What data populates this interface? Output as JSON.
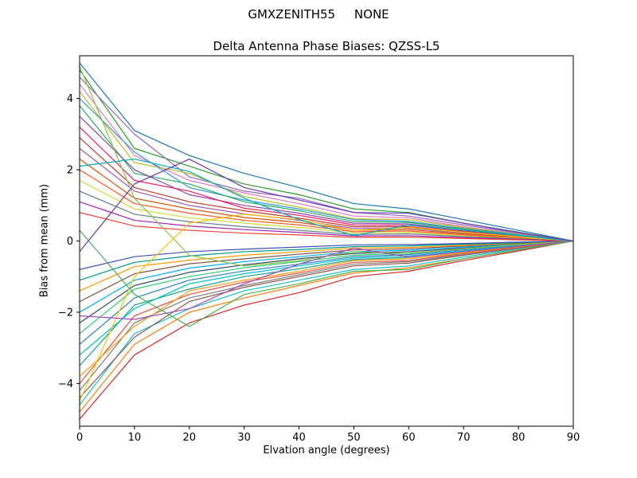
{
  "figure": {
    "suptitle": "GMXZENITH55     NONE",
    "background": "#ffffff",
    "frame_color": "#000000"
  },
  "chart_data": {
    "type": "line",
    "title": "Delta Antenna Phase Biases: QZSS-L5",
    "xlabel": "Elvation angle (degrees)",
    "ylabel": "Bias from mean (mm)",
    "xlim": [
      0,
      90
    ],
    "ylim": [
      -5.2,
      5.2
    ],
    "xticks": [
      0,
      10,
      20,
      30,
      40,
      50,
      60,
      70,
      80,
      90
    ],
    "yticks": [
      -4,
      -2,
      0,
      2,
      4
    ],
    "grid": false,
    "legend_position": "none",
    "x": [
      0,
      10,
      20,
      30,
      40,
      50,
      60,
      70,
      80,
      90
    ],
    "series": [
      {
        "color": "#1f77b4",
        "values": [
          5.0,
          3.1,
          2.4,
          1.9,
          1.5,
          1.05,
          0.9,
          0.6,
          0.3,
          0
        ]
      },
      {
        "color": "#d62728",
        "values": [
          -5.0,
          -3.2,
          -2.3,
          -1.8,
          -1.45,
          -1.0,
          -0.85,
          -0.55,
          -0.28,
          0
        ]
      },
      {
        "color": "#2ca02c",
        "values": [
          4.8,
          2.6,
          2.1,
          1.6,
          1.3,
          0.9,
          0.8,
          0.5,
          0.25,
          0
        ]
      },
      {
        "color": "#ff7f0e",
        "values": [
          -4.8,
          -2.9,
          -2.0,
          -1.6,
          -1.25,
          -0.9,
          -0.75,
          -0.5,
          -0.25,
          0
        ]
      },
      {
        "color": "#9467bd",
        "values": [
          4.6,
          3.0,
          1.8,
          1.4,
          1.2,
          0.8,
          0.7,
          0.45,
          0.22,
          0
        ]
      },
      {
        "color": "#17becf",
        "values": [
          -4.6,
          -2.6,
          -1.9,
          -1.4,
          -1.1,
          -0.8,
          -0.7,
          -0.45,
          -0.22,
          0
        ]
      },
      {
        "color": "#e377c2",
        "values": [
          4.4,
          2.4,
          1.7,
          1.35,
          1.05,
          0.7,
          0.65,
          0.4,
          0.2,
          0
        ]
      },
      {
        "color": "#8c564b",
        "values": [
          -4.4,
          -2.7,
          -1.7,
          -1.3,
          -1.0,
          -0.7,
          -0.62,
          -0.4,
          -0.2,
          0
        ]
      },
      {
        "color": "#bcbd22",
        "values": [
          4.2,
          2.2,
          1.9,
          1.25,
          0.95,
          0.62,
          0.6,
          0.38,
          0.19,
          0
        ]
      },
      {
        "color": "#7f7f7f",
        "values": [
          -4.2,
          -2.3,
          -1.6,
          -1.25,
          -0.95,
          -0.65,
          -0.58,
          -0.38,
          -0.19,
          0
        ]
      },
      {
        "color": "#3498db",
        "values": [
          4.0,
          2.5,
          1.5,
          1.15,
          0.9,
          0.6,
          0.55,
          0.35,
          0.18,
          0
        ]
      },
      {
        "color": "#e74c3c",
        "values": [
          -4.0,
          -2.1,
          -1.5,
          -1.15,
          -0.9,
          -0.6,
          -0.55,
          -0.35,
          -0.18,
          0
        ]
      },
      {
        "color": "#27ae60",
        "values": [
          3.8,
          1.9,
          1.6,
          1.1,
          0.85,
          0.55,
          0.52,
          0.33,
          0.16,
          0
        ]
      },
      {
        "color": "#f39c12",
        "values": [
          -3.8,
          -2.4,
          -1.4,
          -1.1,
          -0.85,
          -0.55,
          -0.5,
          -0.33,
          -0.16,
          0
        ]
      },
      {
        "color": "#8e44ad",
        "values": [
          3.5,
          2.0,
          1.3,
          1.0,
          0.78,
          0.5,
          0.48,
          0.3,
          0.15,
          0
        ]
      },
      {
        "color": "#16a085",
        "values": [
          -3.5,
          -1.8,
          -1.35,
          -1.0,
          -0.78,
          -0.52,
          -0.46,
          -0.3,
          -0.15,
          0
        ]
      },
      {
        "color": "#e91e63",
        "values": [
          3.2,
          1.7,
          1.4,
          0.92,
          0.72,
          0.45,
          0.44,
          0.28,
          0.14,
          0
        ]
      },
      {
        "color": "#00bcd4",
        "values": [
          -3.2,
          -1.9,
          -1.2,
          -0.92,
          -0.7,
          -0.48,
          -0.42,
          -0.28,
          -0.14,
          0
        ]
      },
      {
        "color": "#c0392b",
        "values": [
          2.9,
          1.5,
          1.1,
          0.85,
          0.64,
          0.4,
          0.4,
          0.25,
          0.12,
          0
        ]
      },
      {
        "color": "#2980b9",
        "values": [
          -2.9,
          -1.6,
          -1.1,
          -0.84,
          -0.65,
          -0.44,
          -0.38,
          -0.25,
          -0.12,
          0
        ]
      },
      {
        "color": "#9b59b6",
        "values": [
          2.6,
          1.4,
          1.0,
          0.76,
          0.58,
          0.35,
          0.36,
          0.22,
          0.11,
          0
        ]
      },
      {
        "color": "#2ecc71",
        "values": [
          -2.6,
          -1.35,
          -1.0,
          -0.75,
          -0.58,
          -0.4,
          -0.34,
          -0.22,
          -0.11,
          0
        ]
      },
      {
        "color": "#d35400",
        "values": [
          2.3,
          1.2,
          0.9,
          0.66,
          0.52,
          0.3,
          0.32,
          0.2,
          0.1,
          0
        ]
      },
      {
        "color": "#34495e",
        "values": [
          -2.3,
          -1.25,
          -0.88,
          -0.67,
          -0.5,
          -0.35,
          -0.3,
          -0.2,
          -0.1,
          0
        ]
      },
      {
        "color": "#ff5722",
        "values": [
          2.0,
          1.05,
          0.78,
          0.58,
          0.45,
          0.26,
          0.28,
          0.17,
          0.08,
          0
        ]
      },
      {
        "color": "#03a9f4",
        "values": [
          -2.0,
          -1.1,
          -0.76,
          -0.58,
          -0.44,
          -0.3,
          -0.26,
          -0.17,
          -0.08,
          0
        ]
      },
      {
        "color": "#cddc39",
        "values": [
          1.7,
          0.9,
          0.65,
          0.5,
          0.38,
          0.22,
          0.24,
          0.14,
          0.07,
          0
        ]
      },
      {
        "color": "#795548",
        "values": [
          -1.7,
          -0.92,
          -0.64,
          -0.5,
          -0.37,
          -0.25,
          -0.22,
          -0.14,
          -0.07,
          0
        ]
      },
      {
        "color": "#607d8b",
        "values": [
          1.4,
          0.75,
          0.54,
          0.4,
          0.3,
          0.18,
          0.2,
          0.12,
          0.06,
          0
        ]
      },
      {
        "color": "#ff9800",
        "values": [
          -1.4,
          -0.72,
          -0.54,
          -0.4,
          -0.3,
          -0.2,
          -0.18,
          -0.12,
          -0.06,
          0
        ]
      },
      {
        "color": "#9c27b0",
        "values": [
          1.1,
          0.58,
          0.42,
          0.32,
          0.24,
          0.14,
          0.15,
          0.09,
          0.05,
          0
        ]
      },
      {
        "color": "#009688",
        "values": [
          -1.1,
          -0.6,
          -0.42,
          -0.3,
          -0.24,
          -0.16,
          -0.14,
          -0.09,
          -0.05,
          0
        ]
      },
      {
        "color": "#f44336",
        "values": [
          0.8,
          0.42,
          0.3,
          0.22,
          0.17,
          0.1,
          0.11,
          0.07,
          0.03,
          0
        ]
      },
      {
        "color": "#3f51b5",
        "values": [
          -0.8,
          -0.44,
          -0.3,
          -0.23,
          -0.17,
          -0.11,
          -0.1,
          -0.07,
          -0.03,
          0
        ]
      },
      {
        "color": "#8bc34a",
        "values": [
          4.9,
          1.2,
          -0.4,
          -0.7,
          -0.55,
          -0.3,
          -0.35,
          -0.22,
          -0.1,
          0
        ]
      },
      {
        "color": "#ffc107",
        "values": [
          -4.5,
          -1.0,
          0.5,
          0.75,
          0.6,
          0.3,
          0.38,
          0.24,
          0.12,
          0
        ]
      },
      {
        "color": "#00acc1",
        "values": [
          2.1,
          2.3,
          1.95,
          1.2,
          0.6,
          0.15,
          0.45,
          0.3,
          0.15,
          0
        ]
      },
      {
        "color": "#ab47bc",
        "values": [
          -2.1,
          -2.2,
          -1.9,
          -1.2,
          -0.65,
          -0.2,
          -0.45,
          -0.3,
          -0.15,
          0
        ]
      },
      {
        "color": "#4caf50",
        "values": [
          0.3,
          -1.5,
          -2.4,
          -1.5,
          -1.2,
          -0.85,
          -0.8,
          -0.5,
          -0.25,
          0
        ]
      },
      {
        "color": "#673ab7",
        "values": [
          -0.3,
          1.6,
          2.3,
          1.5,
          1.15,
          0.8,
          0.78,
          0.5,
          0.24,
          0
        ]
      }
    ]
  }
}
